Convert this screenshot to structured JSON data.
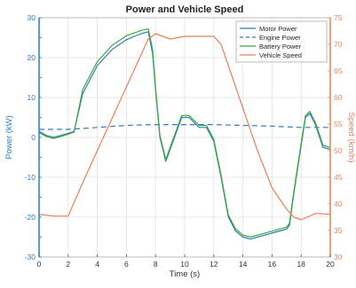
{
  "chart_data": {
    "type": "line",
    "title": "Power and Vehicle Speed",
    "xlabel": "Time (s)",
    "ylabel_left": "Power (kW)",
    "ylabel_right": "Speed (km/h)",
    "xlim": [
      0,
      20
    ],
    "ylim_left": [
      -30,
      30
    ],
    "ylim_right": [
      30,
      75
    ],
    "x_ticks": [
      "0",
      "2",
      "4",
      "6",
      "8",
      "10",
      "12",
      "14",
      "16",
      "18",
      "20"
    ],
    "y_ticks_left": [
      "-30",
      "-25",
      "-20",
      "-15",
      "-10",
      "-5",
      "0",
      "5",
      "10",
      "15",
      "20",
      "25",
      "30"
    ],
    "y_ticks_right": [
      "30",
      "35",
      "40",
      "45",
      "50",
      "55",
      "60",
      "65",
      "70",
      "75"
    ],
    "grid": true,
    "legend_position": "top-right",
    "colors": {
      "motor": "#2f7bbf",
      "engine": "#2f7bbf",
      "battery": "#3aa83a",
      "speed": "#e8805a",
      "left_axis": "#2f7bbf",
      "right_axis": "#e8805a",
      "grid": "#e2e2e2"
    },
    "series": [
      {
        "name": "Motor Power",
        "axis": "left",
        "style": "solid",
        "points": [
          [
            0,
            1.5
          ],
          [
            0.5,
            0.5
          ],
          [
            1,
            0
          ],
          [
            1.5,
            0.5
          ],
          [
            2,
            1
          ],
          [
            2.4,
            1.5
          ],
          [
            3,
            11
          ],
          [
            4,
            18
          ],
          [
            5,
            22
          ],
          [
            6,
            24.5
          ],
          [
            7,
            26
          ],
          [
            7.5,
            26.5
          ],
          [
            7.8,
            21
          ],
          [
            8,
            12
          ],
          [
            8.3,
            0
          ],
          [
            8.7,
            -6
          ],
          [
            9.2,
            -1
          ],
          [
            9.8,
            5
          ],
          [
            10.3,
            5
          ],
          [
            11,
            2.5
          ],
          [
            11.5,
            2.5
          ],
          [
            12,
            -1
          ],
          [
            12.5,
            -10
          ],
          [
            13,
            -20
          ],
          [
            13.5,
            -23.5
          ],
          [
            14,
            -25
          ],
          [
            14.5,
            -25.5
          ],
          [
            15,
            -25
          ],
          [
            16,
            -24
          ],
          [
            17,
            -23
          ],
          [
            17.2,
            -22
          ],
          [
            17.5,
            -14
          ],
          [
            18,
            -2
          ],
          [
            18.3,
            5
          ],
          [
            18.6,
            6
          ],
          [
            19,
            3
          ],
          [
            19.5,
            -2.5
          ],
          [
            20,
            -3
          ]
        ]
      },
      {
        "name": "Engine Power",
        "axis": "left",
        "style": "dashed",
        "points": [
          [
            0,
            2
          ],
          [
            2,
            2
          ],
          [
            4,
            2.5
          ],
          [
            6,
            3
          ],
          [
            8,
            3.2
          ],
          [
            10,
            3.2
          ],
          [
            12,
            3.2
          ],
          [
            14,
            3
          ],
          [
            16,
            2.8
          ],
          [
            18,
            2.5
          ],
          [
            20,
            2.5
          ]
        ]
      },
      {
        "name": "Battery Power",
        "axis": "left",
        "style": "solid",
        "points": [
          [
            0,
            1.2
          ],
          [
            0.5,
            0.2
          ],
          [
            1,
            -0.3
          ],
          [
            1.5,
            0.2
          ],
          [
            2,
            0.8
          ],
          [
            2.4,
            1.3
          ],
          [
            3,
            12
          ],
          [
            4,
            19
          ],
          [
            5,
            23
          ],
          [
            6,
            25.5
          ],
          [
            7,
            26.8
          ],
          [
            7.5,
            27.2
          ],
          [
            7.8,
            22
          ],
          [
            8,
            12.5
          ],
          [
            8.3,
            0.5
          ],
          [
            8.7,
            -5.5
          ],
          [
            9.2,
            -0.5
          ],
          [
            9.8,
            5.5
          ],
          [
            10.3,
            5.5
          ],
          [
            11,
            3
          ],
          [
            11.5,
            3
          ],
          [
            12,
            -0.5
          ],
          [
            12.5,
            -9.5
          ],
          [
            13,
            -19.5
          ],
          [
            13.5,
            -23
          ],
          [
            14,
            -24.5
          ],
          [
            14.5,
            -25
          ],
          [
            15,
            -24.5
          ],
          [
            16,
            -23.5
          ],
          [
            17,
            -22.5
          ],
          [
            17.2,
            -21.5
          ],
          [
            17.5,
            -13.5
          ],
          [
            18,
            -1.5
          ],
          [
            18.3,
            5.5
          ],
          [
            18.6,
            6.5
          ],
          [
            19,
            3.5
          ],
          [
            19.5,
            -2
          ],
          [
            20,
            -2.5
          ]
        ]
      },
      {
        "name": "Vehicle Speed",
        "axis": "right",
        "style": "solid",
        "points": [
          [
            0,
            38
          ],
          [
            1,
            37.7
          ],
          [
            2,
            37.7
          ],
          [
            3,
            44
          ],
          [
            4,
            50
          ],
          [
            5,
            56
          ],
          [
            6,
            62
          ],
          [
            7,
            68
          ],
          [
            7.5,
            71
          ],
          [
            8,
            72
          ],
          [
            8.5,
            71.5
          ],
          [
            9,
            71
          ],
          [
            10,
            71.5
          ],
          [
            11,
            71.5
          ],
          [
            12,
            71.5
          ],
          [
            12.5,
            70
          ],
          [
            13,
            66
          ],
          [
            14,
            58
          ],
          [
            15,
            50
          ],
          [
            16,
            43
          ],
          [
            17,
            39
          ],
          [
            17.5,
            37.5
          ],
          [
            18,
            37
          ],
          [
            18.5,
            37.6
          ],
          [
            19,
            38.2
          ],
          [
            20,
            38
          ]
        ]
      }
    ]
  }
}
